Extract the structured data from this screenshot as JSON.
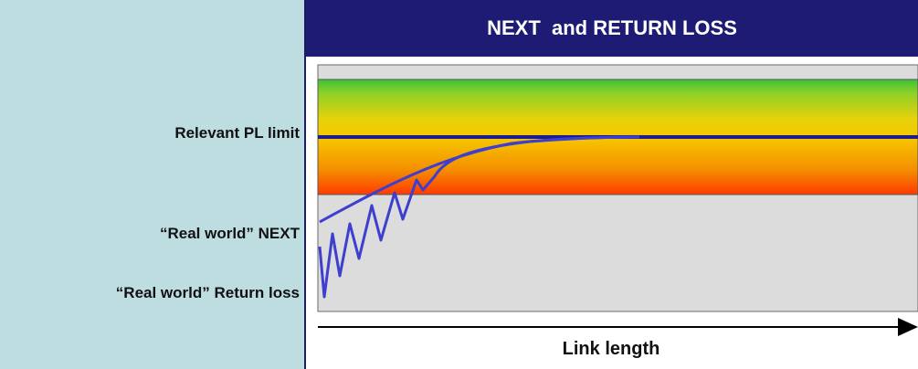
{
  "title": "NEXT  and RETURN LOSS",
  "labels": {
    "pl_limit": "Relevant PL limit",
    "next": "“Real world” NEXT",
    "return_loss": "“Real world” Return loss"
  },
  "x_axis_label": "Link length",
  "colors": {
    "title_bar": "#1e1b75",
    "background": "#bddde1",
    "curve": "#3e3ecf",
    "limit_line": "#1c1c8c",
    "band_gradient": [
      "#3cc23a",
      "#f5d400",
      "#f08a00",
      "#ff3300"
    ],
    "plot_area": "#dcdcdc"
  }
}
